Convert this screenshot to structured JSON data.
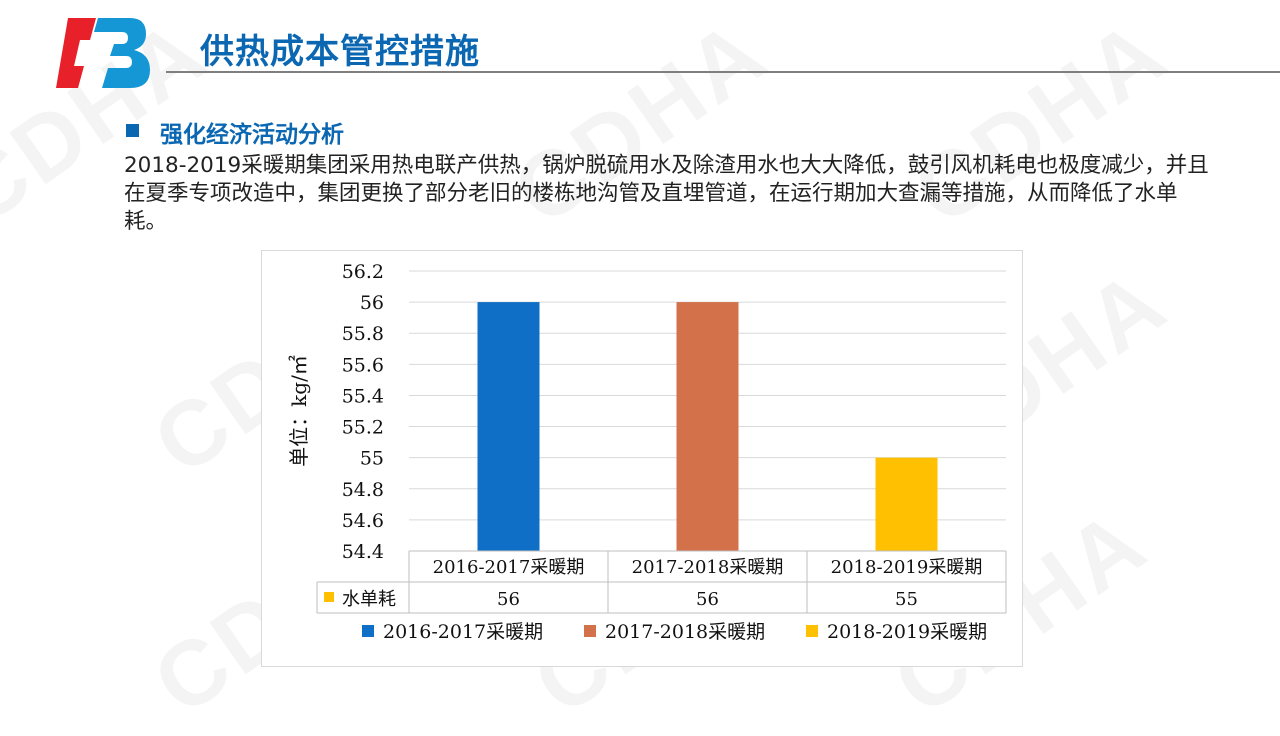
{
  "header": {
    "title": "供热成本管控措施"
  },
  "section": {
    "heading": "强化经济活动分析",
    "body": "2018-2019采暖期集团采用热电联产供热，锅炉脱硫用水及除渣用水也大大降低，鼓引风机耗电也极度减少，并且在夏季专项改造中，集团更换了部分老旧的楼栋地沟管及直埋管道，在运行期加大查漏等措施，从而降低了水单耗。"
  },
  "watermark": "CDHA",
  "colors": {
    "accent": "#0b67b2",
    "logo_red": "#e8202a",
    "logo_blue": "#1597d5",
    "series_1": "#0f6fc6",
    "series_2": "#d2714a",
    "series_3": "#fec000"
  },
  "chart_data": {
    "type": "bar",
    "title": "",
    "categories": [
      "2016-2017采暖期",
      "2017-2018采暖期",
      "2018-2019采暖期"
    ],
    "series": [
      {
        "name": "水单耗",
        "values": [
          56,
          56,
          55
        ]
      }
    ],
    "ylabel": "单位：kg/㎡",
    "ylim": [
      54.4,
      56.2
    ],
    "yticks": [
      "56.2",
      "56",
      "55.8",
      "55.6",
      "55.4",
      "55.2",
      "55",
      "54.8",
      "54.6",
      "54.4"
    ],
    "data_table": {
      "row_label": "水单耗",
      "values": [
        "56",
        "56",
        "55"
      ]
    },
    "legend": {
      "placement": "bottom",
      "entries": [
        "2016-2017采暖期",
        "2017-2018采暖期",
        "2018-2019采暖期"
      ]
    },
    "grid": true
  }
}
